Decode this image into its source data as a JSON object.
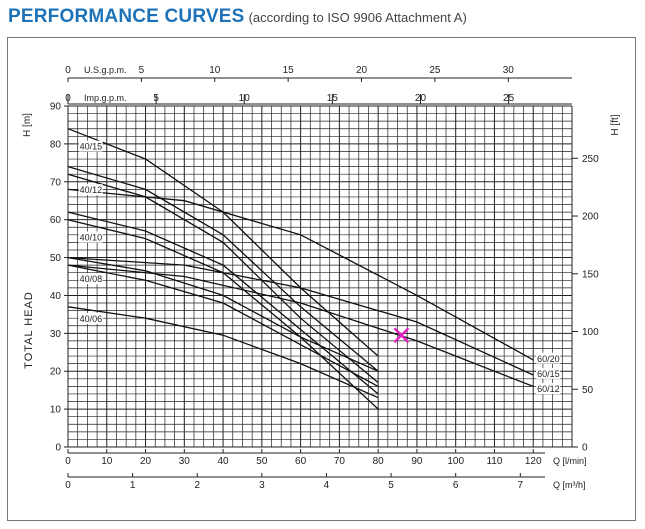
{
  "title": "PERFORMANCE CURVES",
  "subtitle": "(according to ISO 9906 Attachment A)",
  "chart_data": {
    "type": "line",
    "ylabel_left": "TOTAL HEAD",
    "yunit_left": "H [m]",
    "yunit_right": "H [ft]",
    "xunit_lmin": "Q [l/min]",
    "xunit_m3h": "Q [m³/h]",
    "xunit_usgpm": "U.S.g.p.m.",
    "xunit_impgpm": "Imp.g.p.m.",
    "ylim": [
      0,
      90
    ],
    "xlim": [
      0,
      130
    ],
    "yticks_m": [
      0,
      10,
      20,
      30,
      40,
      50,
      60,
      70,
      80,
      90
    ],
    "yticks_ft": [
      0,
      50,
      100,
      150,
      200,
      250
    ],
    "xticks_lmin": [
      0,
      10,
      20,
      30,
      40,
      50,
      60,
      70,
      80,
      90,
      100,
      110,
      120
    ],
    "xticks_m3h": [
      0,
      1,
      2,
      3,
      4,
      5,
      6,
      7
    ],
    "xticks_usgpm": [
      0,
      5,
      10,
      15,
      20,
      25,
      30
    ],
    "xticks_impgpm": [
      0,
      5,
      10,
      15,
      20,
      25
    ],
    "grid": true,
    "series": [
      {
        "name": "40/15",
        "x": [
          0,
          20,
          40,
          60,
          80
        ],
        "y": [
          84,
          76,
          62,
          42,
          24
        ]
      },
      {
        "name": "40/15",
        "x": [
          0,
          20,
          40,
          60,
          80
        ],
        "y": [
          74,
          68,
          56,
          37,
          20
        ]
      },
      {
        "name": "40/12",
        "x": [
          0,
          20,
          40,
          60,
          80
        ],
        "y": [
          72,
          66,
          54,
          34,
          17
        ]
      },
      {
        "name": "40/12",
        "x": [
          0,
          20,
          40,
          60,
          80
        ],
        "y": [
          62,
          57,
          48,
          31,
          14
        ]
      },
      {
        "name": "40/10",
        "x": [
          0,
          20,
          40,
          60,
          80
        ],
        "y": [
          60,
          55,
          46,
          29,
          10
        ]
      },
      {
        "name": "40/10",
        "x": [
          0,
          20,
          40,
          60,
          80
        ],
        "y": [
          50,
          46.5,
          40,
          29,
          20
        ]
      },
      {
        "name": "40/08",
        "x": [
          0,
          20,
          40,
          60,
          80
        ],
        "y": [
          48,
          44,
          38,
          27,
          16
        ]
      },
      {
        "name": "40/06",
        "x": [
          0,
          20,
          40,
          60,
          80
        ],
        "y": [
          37,
          34,
          29.5,
          22,
          13
        ]
      },
      {
        "name": "60/20",
        "x": [
          0,
          30,
          60,
          90,
          120
        ],
        "y": [
          68,
          65,
          56,
          40,
          23
        ]
      },
      {
        "name": "60/15",
        "x": [
          0,
          30,
          60,
          90,
          120
        ],
        "y": [
          50,
          48,
          42,
          33,
          19
        ]
      },
      {
        "name": "60/12",
        "x": [
          0,
          30,
          60,
          90,
          120
        ],
        "y": [
          48,
          45,
          38,
          28,
          16
        ]
      }
    ],
    "curve_labels": [
      {
        "text": "40/15",
        "x": 3,
        "y": 78.5
      },
      {
        "text": "40/12",
        "x": 3,
        "y": 67
      },
      {
        "text": "40/10",
        "x": 3,
        "y": 54.5
      },
      {
        "text": "40/08",
        "x": 3,
        "y": 43.5
      },
      {
        "text": "40/06",
        "x": 3,
        "y": 33
      },
      {
        "text": "60/20",
        "x": 121,
        "y": 22.5
      },
      {
        "text": "60/15",
        "x": 121,
        "y": 18.5
      },
      {
        "text": "60/12",
        "x": 121,
        "y": 14.5
      }
    ],
    "marker": {
      "x": 86,
      "y": 29.5,
      "color": "#e020c0"
    },
    "curve_color": "#111111",
    "grid_color": "#222222"
  }
}
